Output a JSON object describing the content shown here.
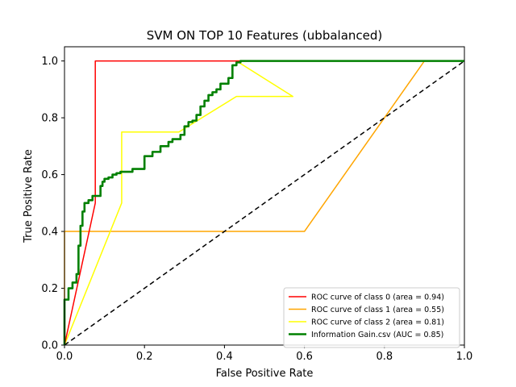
{
  "chart_data": {
    "type": "line",
    "title": "SVM ON TOP 10 Features (ubbalanced)",
    "xlabel": "False Positive Rate",
    "ylabel": "True Positive Rate",
    "xlim": [
      0.0,
      1.0
    ],
    "ylim": [
      0.0,
      1.05
    ],
    "xticks": [
      "0.0",
      "0.2",
      "0.4",
      "0.6",
      "0.8",
      "1.0"
    ],
    "yticks": [
      "0.0",
      "0.2",
      "0.4",
      "0.6",
      "0.8",
      "1.0"
    ],
    "grid": false,
    "legend_position": "lower-right",
    "series": [
      {
        "name": "ROC curve of class 0 (area = 0.94)",
        "color": "#ff0000",
        "x": [
          0.0,
          0.077,
          0.077,
          0.43,
          1.0
        ],
        "y": [
          0.0,
          0.5,
          1.0,
          1.0,
          1.0
        ]
      },
      {
        "name": "ROC curve of class 1 (area = 0.55)",
        "color": "#ffa500",
        "x": [
          0.0,
          0.0,
          0.6,
          0.9,
          1.0
        ],
        "y": [
          0.0,
          0.4,
          0.4,
          1.0,
          1.0
        ]
      },
      {
        "name": "ROC curve of class 2 (area = 0.81)",
        "color": "#ffff00",
        "x": [
          0.0,
          0.143,
          0.143,
          0.286,
          0.43,
          0.571,
          0.43,
          1.0
        ],
        "y": [
          0.0,
          0.5,
          0.75,
          0.75,
          0.875,
          0.875,
          1.0,
          1.0
        ]
      },
      {
        "name": "Information Gain.csv (AUC = 0.85)",
        "color": "#008000",
        "bold": true,
        "x": [
          0.0,
          0.0,
          0.01,
          0.01,
          0.02,
          0.02,
          0.03,
          0.03,
          0.035,
          0.035,
          0.04,
          0.04,
          0.045,
          0.045,
          0.05,
          0.05,
          0.06,
          0.06,
          0.07,
          0.07,
          0.09,
          0.09,
          0.095,
          0.095,
          0.1,
          0.1,
          0.11,
          0.11,
          0.12,
          0.12,
          0.13,
          0.13,
          0.14,
          0.14,
          0.17,
          0.17,
          0.2,
          0.2,
          0.22,
          0.22,
          0.24,
          0.24,
          0.26,
          0.26,
          0.27,
          0.27,
          0.29,
          0.29,
          0.3,
          0.3,
          0.31,
          0.31,
          0.32,
          0.32,
          0.33,
          0.33,
          0.34,
          0.34,
          0.35,
          0.35,
          0.36,
          0.36,
          0.37,
          0.37,
          0.38,
          0.38,
          0.39,
          0.39,
          0.41,
          0.41,
          0.42,
          0.42,
          0.43,
          0.43,
          0.44,
          0.44,
          1.0
        ],
        "y": [
          0.0,
          0.16,
          0.16,
          0.2,
          0.2,
          0.22,
          0.22,
          0.25,
          0.25,
          0.35,
          0.35,
          0.42,
          0.42,
          0.47,
          0.47,
          0.5,
          0.5,
          0.51,
          0.51,
          0.525,
          0.525,
          0.56,
          0.56,
          0.575,
          0.575,
          0.585,
          0.585,
          0.59,
          0.59,
          0.6,
          0.6,
          0.605,
          0.605,
          0.61,
          0.61,
          0.62,
          0.62,
          0.665,
          0.665,
          0.68,
          0.68,
          0.7,
          0.7,
          0.715,
          0.715,
          0.725,
          0.725,
          0.74,
          0.74,
          0.77,
          0.77,
          0.785,
          0.785,
          0.79,
          0.79,
          0.81,
          0.81,
          0.84,
          0.84,
          0.86,
          0.86,
          0.88,
          0.88,
          0.89,
          0.89,
          0.9,
          0.9,
          0.92,
          0.92,
          0.94,
          0.94,
          0.985,
          0.985,
          0.995,
          0.995,
          1.0,
          1.0
        ]
      },
      {
        "color": "#000000",
        "dashed": true,
        "x": [
          0.0,
          1.0
        ],
        "y": [
          0.0,
          1.0
        ]
      }
    ]
  }
}
